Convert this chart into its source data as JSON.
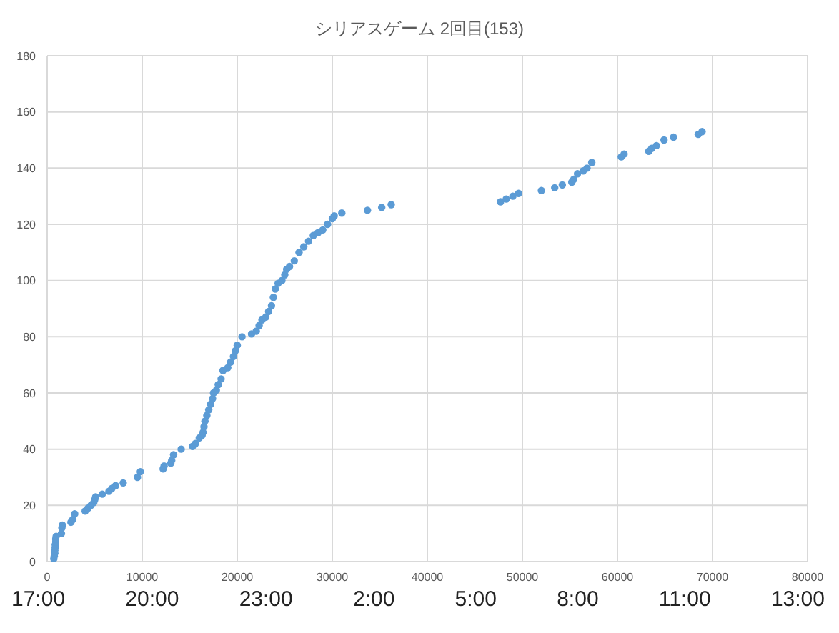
{
  "chart_data": {
    "type": "scatter",
    "title": "シリアスゲーム 2回目(153)",
    "x": [
      700,
      750,
      800,
      800,
      850,
      850,
      900,
      900,
      950,
      1500,
      1550,
      1600,
      2500,
      2700,
      2900,
      4000,
      4300,
      4600,
      4900,
      5000,
      5100,
      5800,
      6500,
      6800,
      7200,
      8000,
      9500,
      9800,
      12200,
      12300,
      13000,
      13100,
      13300,
      14100,
      15300,
      15600,
      16000,
      16300,
      16400,
      16500,
      16600,
      16800,
      17000,
      17200,
      17400,
      17500,
      17800,
      18000,
      18300,
      18500,
      19000,
      19300,
      19600,
      19800,
      20000,
      20500,
      21500,
      22000,
      22300,
      22600,
      23000,
      23300,
      23600,
      23800,
      24000,
      24300,
      24700,
      25000,
      25200,
      25500,
      26000,
      26500,
      27000,
      27500,
      28000,
      28500,
      29000,
      29500,
      30000,
      30200,
      31000,
      33700,
      35200,
      36200,
      47700,
      48300,
      49000,
      49600,
      52000,
      53400,
      54200,
      55200,
      55400,
      55800,
      56400,
      56800,
      57300,
      60400,
      60700,
      63300,
      63600,
      64100,
      64900,
      65900,
      68500,
      68900
    ],
    "values": [
      1,
      2,
      3,
      4,
      5,
      6,
      7,
      8,
      9,
      10,
      12,
      13,
      14,
      15,
      17,
      18,
      19,
      20,
      21,
      22,
      23,
      24,
      25,
      26,
      27,
      28,
      30,
      32,
      33,
      34,
      35,
      36,
      38,
      40,
      41,
      42,
      44,
      45,
      46,
      48,
      50,
      52,
      54,
      56,
      58,
      60,
      61,
      63,
      65,
      68,
      69,
      71,
      73,
      75,
      77,
      80,
      81,
      82,
      84,
      86,
      87,
      89,
      91,
      94,
      97,
      99,
      100,
      102,
      104,
      105,
      107,
      110,
      112,
      114,
      116,
      117,
      118,
      120,
      122,
      123,
      124,
      125,
      126,
      127,
      128,
      129,
      130,
      131,
      132,
      133,
      134,
      135,
      136,
      138,
      139,
      140,
      142,
      144,
      145,
      146,
      147,
      148,
      150,
      151,
      152,
      153
    ],
    "color": "#5b9bd5",
    "marker": "circle",
    "xlim": [
      0,
      80000
    ],
    "xticks": [
      0,
      10000,
      20000,
      30000,
      40000,
      50000,
      60000,
      70000,
      80000
    ],
    "ylim": [
      0,
      180
    ],
    "yticks": [
      0,
      20,
      40,
      60,
      80,
      100,
      120,
      140,
      160,
      180
    ],
    "grid": true,
    "annotations": [
      "17:00",
      "20:00",
      "23:00",
      "2:00",
      "5:00",
      "8:00",
      "11:00",
      "13:00"
    ]
  }
}
